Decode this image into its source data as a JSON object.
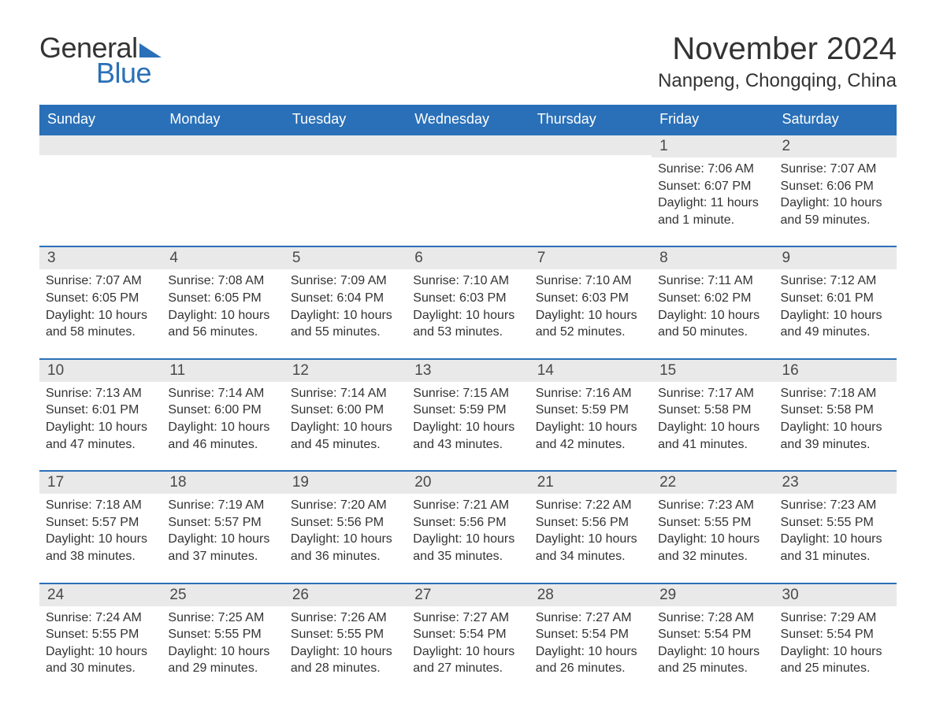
{
  "brand": {
    "general": "General",
    "blue": "Blue"
  },
  "header": {
    "month_title": "November 2024",
    "location": "Nanpeng, Chongqing, China"
  },
  "style": {
    "accent": "#2a70b8",
    "header_bg": "#2a70b8",
    "header_text": "#ffffff",
    "daynum_bg": "#e9e9e9",
    "body_text": "#333333",
    "body_bg": "#ffffff",
    "title_fontsize": 40,
    "location_fontsize": 24,
    "dow_fontsize": 18,
    "day_fontsize": 16
  },
  "days_of_week": [
    "Sunday",
    "Monday",
    "Tuesday",
    "Wednesday",
    "Thursday",
    "Friday",
    "Saturday"
  ],
  "calendar": {
    "start_day_index": 5,
    "days": [
      {
        "n": 1,
        "sunrise": "7:06 AM",
        "sunset": "6:07 PM",
        "daylight": "11 hours and 1 minute."
      },
      {
        "n": 2,
        "sunrise": "7:07 AM",
        "sunset": "6:06 PM",
        "daylight": "10 hours and 59 minutes."
      },
      {
        "n": 3,
        "sunrise": "7:07 AM",
        "sunset": "6:05 PM",
        "daylight": "10 hours and 58 minutes."
      },
      {
        "n": 4,
        "sunrise": "7:08 AM",
        "sunset": "6:05 PM",
        "daylight": "10 hours and 56 minutes."
      },
      {
        "n": 5,
        "sunrise": "7:09 AM",
        "sunset": "6:04 PM",
        "daylight": "10 hours and 55 minutes."
      },
      {
        "n": 6,
        "sunrise": "7:10 AM",
        "sunset": "6:03 PM",
        "daylight": "10 hours and 53 minutes."
      },
      {
        "n": 7,
        "sunrise": "7:10 AM",
        "sunset": "6:03 PM",
        "daylight": "10 hours and 52 minutes."
      },
      {
        "n": 8,
        "sunrise": "7:11 AM",
        "sunset": "6:02 PM",
        "daylight": "10 hours and 50 minutes."
      },
      {
        "n": 9,
        "sunrise": "7:12 AM",
        "sunset": "6:01 PM",
        "daylight": "10 hours and 49 minutes."
      },
      {
        "n": 10,
        "sunrise": "7:13 AM",
        "sunset": "6:01 PM",
        "daylight": "10 hours and 47 minutes."
      },
      {
        "n": 11,
        "sunrise": "7:14 AM",
        "sunset": "6:00 PM",
        "daylight": "10 hours and 46 minutes."
      },
      {
        "n": 12,
        "sunrise": "7:14 AM",
        "sunset": "6:00 PM",
        "daylight": "10 hours and 45 minutes."
      },
      {
        "n": 13,
        "sunrise": "7:15 AM",
        "sunset": "5:59 PM",
        "daylight": "10 hours and 43 minutes."
      },
      {
        "n": 14,
        "sunrise": "7:16 AM",
        "sunset": "5:59 PM",
        "daylight": "10 hours and 42 minutes."
      },
      {
        "n": 15,
        "sunrise": "7:17 AM",
        "sunset": "5:58 PM",
        "daylight": "10 hours and 41 minutes."
      },
      {
        "n": 16,
        "sunrise": "7:18 AM",
        "sunset": "5:58 PM",
        "daylight": "10 hours and 39 minutes."
      },
      {
        "n": 17,
        "sunrise": "7:18 AM",
        "sunset": "5:57 PM",
        "daylight": "10 hours and 38 minutes."
      },
      {
        "n": 18,
        "sunrise": "7:19 AM",
        "sunset": "5:57 PM",
        "daylight": "10 hours and 37 minutes."
      },
      {
        "n": 19,
        "sunrise": "7:20 AM",
        "sunset": "5:56 PM",
        "daylight": "10 hours and 36 minutes."
      },
      {
        "n": 20,
        "sunrise": "7:21 AM",
        "sunset": "5:56 PM",
        "daylight": "10 hours and 35 minutes."
      },
      {
        "n": 21,
        "sunrise": "7:22 AM",
        "sunset": "5:56 PM",
        "daylight": "10 hours and 34 minutes."
      },
      {
        "n": 22,
        "sunrise": "7:23 AM",
        "sunset": "5:55 PM",
        "daylight": "10 hours and 32 minutes."
      },
      {
        "n": 23,
        "sunrise": "7:23 AM",
        "sunset": "5:55 PM",
        "daylight": "10 hours and 31 minutes."
      },
      {
        "n": 24,
        "sunrise": "7:24 AM",
        "sunset": "5:55 PM",
        "daylight": "10 hours and 30 minutes."
      },
      {
        "n": 25,
        "sunrise": "7:25 AM",
        "sunset": "5:55 PM",
        "daylight": "10 hours and 29 minutes."
      },
      {
        "n": 26,
        "sunrise": "7:26 AM",
        "sunset": "5:55 PM",
        "daylight": "10 hours and 28 minutes."
      },
      {
        "n": 27,
        "sunrise": "7:27 AM",
        "sunset": "5:54 PM",
        "daylight": "10 hours and 27 minutes."
      },
      {
        "n": 28,
        "sunrise": "7:27 AM",
        "sunset": "5:54 PM",
        "daylight": "10 hours and 26 minutes."
      },
      {
        "n": 29,
        "sunrise": "7:28 AM",
        "sunset": "5:54 PM",
        "daylight": "10 hours and 25 minutes."
      },
      {
        "n": 30,
        "sunrise": "7:29 AM",
        "sunset": "5:54 PM",
        "daylight": "10 hours and 25 minutes."
      }
    ]
  },
  "labels": {
    "sunrise_prefix": "Sunrise: ",
    "sunset_prefix": "Sunset: ",
    "daylight_prefix": "Daylight: "
  }
}
